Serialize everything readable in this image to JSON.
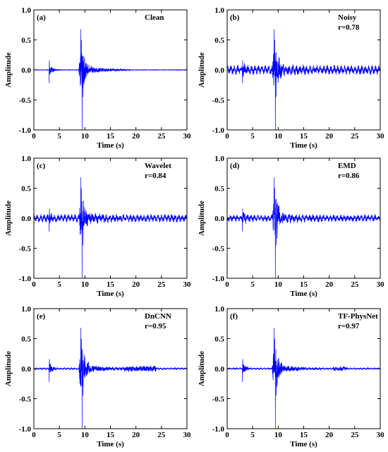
{
  "chart_data": [
    {
      "type": "line",
      "panel_label": "(a)",
      "method": "Clean",
      "correlation": "",
      "xlabel": "Time (s)",
      "ylabel": "Amplitude",
      "xlim": [
        0,
        30
      ],
      "ylim": [
        -1.0,
        1.0
      ],
      "x_ticks": [
        "0",
        "5",
        "10",
        "15",
        "20",
        "25",
        "30"
      ],
      "y_ticks": [
        "-1.0",
        "-0.5",
        "0.0",
        "0.5",
        "1.0"
      ],
      "series": [
        {
          "color": "#0000ff",
          "baseline_noise": 0.004,
          "trace": {
            "onsets": [
              [
                3.0,
                -0.22,
                0.16,
                0.06
              ]
            ],
            "events": [
              [
                9.1,
                9.7,
                -1.0,
                0.68,
                0.33
              ]
            ],
            "coda_amp": 0.06,
            "coda_end": 19.0,
            "extra_bursts": []
          }
        }
      ]
    },
    {
      "type": "line",
      "panel_label": "(b)",
      "method": "Noisy",
      "correlation": "r=0.78",
      "xlabel": "Time (s)",
      "ylabel": "Amplitude",
      "xlim": [
        0,
        30
      ],
      "ylim": [
        -1.0,
        1.0
      ],
      "x_ticks": [
        "0",
        "5",
        "10",
        "15",
        "20",
        "25",
        "30"
      ],
      "y_ticks": [
        "-1.0",
        "-0.5",
        "0.0",
        "0.5",
        "1.0"
      ],
      "series": [
        {
          "color": "#0000ff",
          "baseline_noise": 0.06,
          "trace": {
            "onsets": [
              [
                3.0,
                -0.22,
                0.16,
                0.06
              ]
            ],
            "events": [
              [
                9.1,
                9.7,
                -1.0,
                0.68,
                0.33
              ]
            ],
            "coda_amp": 0.06,
            "coda_end": 19.0,
            "extra_bursts": []
          }
        }
      ]
    },
    {
      "type": "line",
      "panel_label": "(c)",
      "method": "Wavelet",
      "correlation": "r=0.84",
      "xlabel": "Time (s)",
      "ylabel": "Amplitude",
      "xlim": [
        0,
        30
      ],
      "ylim": [
        -1.0,
        1.0
      ],
      "x_ticks": [
        "0",
        "5",
        "10",
        "15",
        "20",
        "25",
        "30"
      ],
      "y_ticks": [
        "-1.0",
        "-0.5",
        "0.0",
        "0.5",
        "1.0"
      ],
      "series": [
        {
          "color": "#0000ff",
          "baseline_noise": 0.05,
          "trace": {
            "onsets": [
              [
                3.0,
                -0.22,
                0.16,
                0.06
              ]
            ],
            "events": [
              [
                9.1,
                9.7,
                -1.0,
                0.68,
                0.33
              ]
            ],
            "coda_amp": 0.06,
            "coda_end": 19.0,
            "extra_bursts": []
          }
        }
      ]
    },
    {
      "type": "line",
      "panel_label": "(d)",
      "method": "EMD",
      "correlation": "r=0.86",
      "xlabel": "Time (s)",
      "ylabel": "Amplitude",
      "xlim": [
        0,
        30
      ],
      "ylim": [
        -1.0,
        1.0
      ],
      "x_ticks": [
        "0",
        "5",
        "10",
        "15",
        "20",
        "25",
        "30"
      ],
      "y_ticks": [
        "-1.0",
        "-0.5",
        "0.0",
        "0.5",
        "1.0"
      ],
      "series": [
        {
          "color": "#0000ff",
          "baseline_noise": 0.045,
          "trace": {
            "onsets": [
              [
                3.0,
                -0.22,
                0.16,
                0.06
              ]
            ],
            "events": [
              [
                9.1,
                9.7,
                -1.0,
                0.68,
                0.33
              ]
            ],
            "coda_amp": 0.06,
            "coda_end": 19.0,
            "extra_bursts": []
          }
        }
      ]
    },
    {
      "type": "line",
      "panel_label": "(e)",
      "method": "DnCNN",
      "correlation": "r=0.95",
      "xlabel": "Time (s)",
      "ylabel": "Amplitude",
      "xlim": [
        0,
        30
      ],
      "ylim": [
        -1.0,
        1.0
      ],
      "x_ticks": [
        "0",
        "5",
        "10",
        "15",
        "20",
        "25",
        "30"
      ],
      "y_ticks": [
        "-1.0",
        "-0.5",
        "0.0",
        "0.5",
        "1.0"
      ],
      "series": [
        {
          "color": "#0000ff",
          "baseline_noise": 0.012,
          "trace": {
            "onsets": [
              [
                3.0,
                -0.22,
                0.16,
                0.06
              ]
            ],
            "events": [
              [
                9.1,
                9.7,
                -1.0,
                0.68,
                0.33
              ]
            ],
            "coda_amp": 0.06,
            "coda_end": 19.0,
            "extra_bursts": [
              [
                17.8,
                24.0,
                0.04
              ]
            ]
          }
        }
      ]
    },
    {
      "type": "line",
      "panel_label": "(f)",
      "method": "TF-PhysNet",
      "correlation": "r=0.97",
      "xlabel": "Time (s)",
      "ylabel": "Amplitude",
      "xlim": [
        0,
        30
      ],
      "ylim": [
        -1.0,
        1.0
      ],
      "x_ticks": [
        "0",
        "5",
        "10",
        "15",
        "20",
        "25",
        "30"
      ],
      "y_ticks": [
        "-1.0",
        "-0.5",
        "0.0",
        "0.5",
        "1.0"
      ],
      "series": [
        {
          "color": "#0000ff",
          "baseline_noise": 0.01,
          "trace": {
            "onsets": [
              [
                3.0,
                -0.22,
                0.16,
                0.06
              ]
            ],
            "events": [
              [
                9.1,
                9.7,
                -1.0,
                0.68,
                0.33
              ]
            ],
            "coda_amp": 0.06,
            "coda_end": 19.0,
            "extra_bursts": [
              [
                20.8,
                23.5,
                0.03
              ]
            ]
          }
        }
      ]
    }
  ]
}
